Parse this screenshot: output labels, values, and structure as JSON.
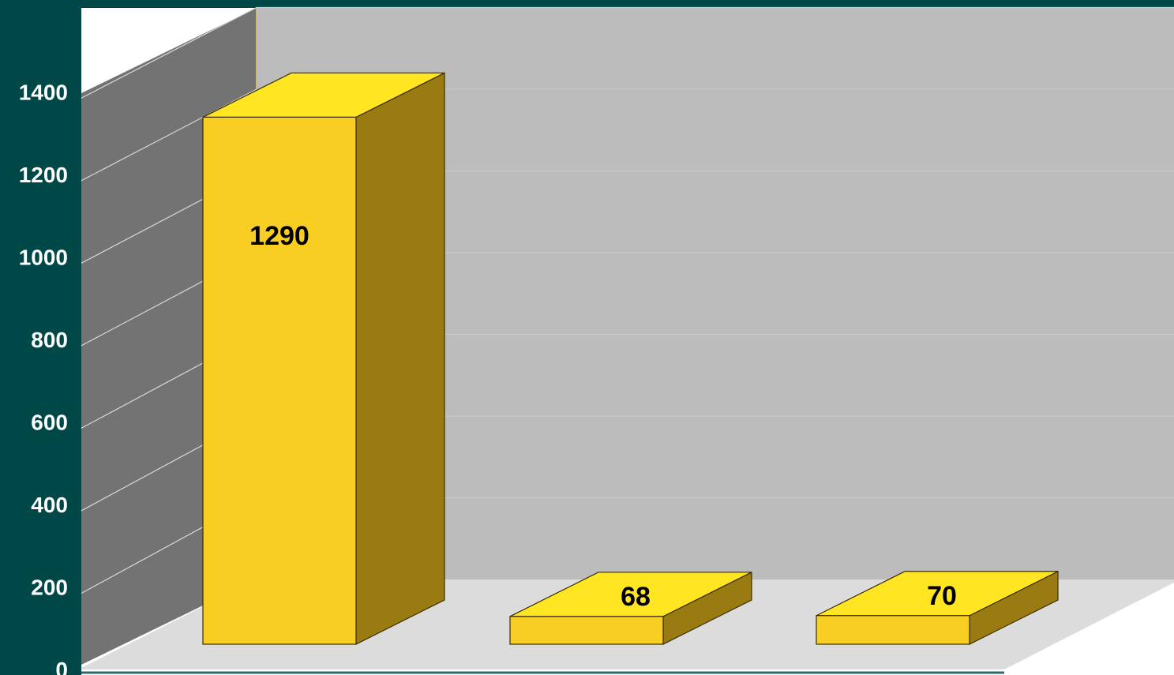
{
  "chart_data": {
    "type": "bar",
    "style": "3d",
    "categories": [
      "",
      "",
      ""
    ],
    "values": [
      1290,
      68,
      70
    ],
    "data_labels": [
      "1290",
      "68",
      "70"
    ],
    "title": "",
    "xlabel": "",
    "ylabel": "",
    "ylim": [
      0,
      1500
    ],
    "yticks": [
      0,
      200,
      400,
      600,
      800,
      1000,
      1200,
      1400
    ],
    "ytick_labels": [
      "0",
      "200",
      "400",
      "600",
      "800",
      "1000",
      "1200",
      "1400"
    ],
    "grid": true,
    "legend": "none",
    "colors": {
      "background": "#004848",
      "back_wall": "#bcbcbc",
      "side_wall": "#737373",
      "floor": "#dcdcdc",
      "bar_front": "#f7ce21",
      "bar_top": "#ffe522",
      "bar_side": "#9a7b12",
      "tick_label": "#ffffff",
      "data_label": "#000000"
    }
  }
}
